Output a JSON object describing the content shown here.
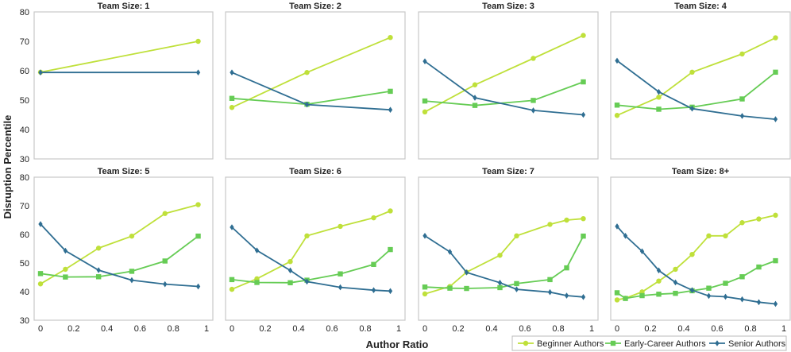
{
  "chart_data": {
    "type": "line",
    "xlabel": "Author Ratio",
    "ylabel": "Disruption Percentile",
    "ylim": [
      30,
      80
    ],
    "yticks": [
      "30",
      "40",
      "50",
      "60",
      "70",
      "80"
    ],
    "xlim": [
      0,
      1
    ],
    "xticks": [
      "0",
      "0.2",
      "0.4",
      "0.6",
      "0.8",
      "1"
    ],
    "grid": false,
    "legend_position": "bottom-right",
    "colors": {
      "beginner": "#bfe03a",
      "early": "#66cc55",
      "senior": "#2f6e92"
    },
    "markers": {
      "beginner": "circle",
      "early": "square",
      "senior": "diamond"
    },
    "legend": [
      "Beginner Authors",
      "Early-Career Authors",
      "Senior Authors"
    ],
    "panels": [
      {
        "title": "Team Size: 1",
        "series": [
          {
            "name": "Beginner Authors",
            "key": "beginner",
            "x": [
              0,
              0.95
            ],
            "y": [
              59.5,
              70
            ]
          },
          {
            "name": "Senior Authors",
            "key": "senior",
            "x": [
              0,
              0.95
            ],
            "y": [
              59.4,
              59.4
            ]
          }
        ]
      },
      {
        "title": "Team Size: 2",
        "series": [
          {
            "name": "Beginner Authors",
            "key": "beginner",
            "x": [
              0,
              0.45,
              0.95
            ],
            "y": [
              47.5,
              59.4,
              71.3
            ]
          },
          {
            "name": "Early-Career Authors",
            "key": "early",
            "x": [
              0,
              0.45,
              0.95
            ],
            "y": [
              50.6,
              48.6,
              53
            ]
          },
          {
            "name": "Senior Authors",
            "key": "senior",
            "x": [
              0,
              0.45,
              0.95
            ],
            "y": [
              59.4,
              48.5,
              46.7
            ]
          }
        ]
      },
      {
        "title": "Team Size: 3",
        "series": [
          {
            "name": "Beginner Authors",
            "key": "beginner",
            "x": [
              0,
              0.3,
              0.65,
              0.95
            ],
            "y": [
              46,
              55.2,
              64.2,
              72
            ]
          },
          {
            "name": "Early-Career Authors",
            "key": "early",
            "x": [
              0,
              0.3,
              0.65,
              0.95
            ],
            "y": [
              49.7,
              48.2,
              49.9,
              56.2
            ]
          },
          {
            "name": "Senior Authors",
            "key": "senior",
            "x": [
              0,
              0.3,
              0.65,
              0.95
            ],
            "y": [
              63.2,
              50.8,
              46.5,
              45
            ]
          }
        ]
      },
      {
        "title": "Team Size: 4",
        "series": [
          {
            "name": "Beginner Authors",
            "key": "beginner",
            "x": [
              0,
              0.25,
              0.45,
              0.75,
              0.95
            ],
            "y": [
              44.8,
              51,
              59.5,
              65.7,
              71.2
            ]
          },
          {
            "name": "Early-Career Authors",
            "key": "early",
            "x": [
              0,
              0.25,
              0.45,
              0.75,
              0.95
            ],
            "y": [
              48.3,
              46.9,
              47.6,
              50.4,
              59.5
            ]
          },
          {
            "name": "Senior Authors",
            "key": "senior",
            "x": [
              0,
              0.25,
              0.45,
              0.75,
              0.95
            ],
            "y": [
              63.4,
              52.8,
              47.1,
              44.6,
              43.5
            ]
          }
        ]
      },
      {
        "title": "Team Size: 5",
        "series": [
          {
            "name": "Beginner Authors",
            "key": "beginner",
            "x": [
              0,
              0.15,
              0.35,
              0.55,
              0.75,
              0.95
            ],
            "y": [
              42.7,
              47.8,
              55.2,
              59.4,
              67.3,
              70.4
            ]
          },
          {
            "name": "Early-Career Authors",
            "key": "early",
            "x": [
              0,
              0.15,
              0.35,
              0.55,
              0.75,
              0.95
            ],
            "y": [
              46.3,
              45.1,
              45.2,
              47.1,
              50.7,
              59.4
            ]
          },
          {
            "name": "Senior Authors",
            "key": "senior",
            "x": [
              0,
              0.15,
              0.35,
              0.55,
              0.75,
              0.95
            ],
            "y": [
              63.6,
              54.3,
              47.5,
              44,
              42.6,
              41.8
            ]
          }
        ]
      },
      {
        "title": "Team Size: 6",
        "series": [
          {
            "name": "Beginner Authors",
            "key": "beginner",
            "x": [
              0,
              0.15,
              0.35,
              0.45,
              0.65,
              0.85,
              0.95
            ],
            "y": [
              40.8,
              44.5,
              50.5,
              59.5,
              62.8,
              65.8,
              68.2
            ]
          },
          {
            "name": "Early-Career Authors",
            "key": "early",
            "x": [
              0,
              0.15,
              0.35,
              0.45,
              0.65,
              0.85,
              0.95
            ],
            "y": [
              44.2,
              43.2,
              43.1,
              44,
              46.2,
              49.5,
              54.7
            ]
          },
          {
            "name": "Senior Authors",
            "key": "senior",
            "x": [
              0,
              0.15,
              0.35,
              0.45,
              0.65,
              0.85,
              0.95
            ],
            "y": [
              62.5,
              54.4,
              47.4,
              43.5,
              41.5,
              40.5,
              40.2
            ]
          }
        ]
      },
      {
        "title": "Team Size: 7",
        "series": [
          {
            "name": "Beginner Authors",
            "key": "beginner",
            "x": [
              0,
              0.15,
              0.25,
              0.45,
              0.55,
              0.75,
              0.85,
              0.95
            ],
            "y": [
              39.2,
              41.8,
              46.8,
              52.7,
              59.5,
              63.5,
              65,
              65.5
            ]
          },
          {
            "name": "Early-Career Authors",
            "key": "early",
            "x": [
              0,
              0.15,
              0.25,
              0.45,
              0.55,
              0.75,
              0.85,
              0.95
            ],
            "y": [
              41.6,
              41.2,
              41.1,
              41.4,
              42.8,
              44.2,
              48.3,
              59.4
            ]
          },
          {
            "name": "Senior Authors",
            "key": "senior",
            "x": [
              0,
              0.15,
              0.25,
              0.45,
              0.55,
              0.75,
              0.85,
              0.95
            ],
            "y": [
              59.5,
              53.9,
              46.7,
              43.1,
              40.8,
              39.8,
              38.6,
              38.1
            ]
          }
        ]
      },
      {
        "title": "Team Size: 8+",
        "series": [
          {
            "name": "Beginner Authors",
            "key": "beginner",
            "x": [
              0,
              0.05,
              0.15,
              0.25,
              0.35,
              0.45,
              0.55,
              0.65,
              0.75,
              0.85,
              0.95
            ],
            "y": [
              37.1,
              37.7,
              39.9,
              43.7,
              47.8,
              53,
              59.5,
              59.5,
              64.1,
              65.4,
              66.7
            ]
          },
          {
            "name": "Early-Career Authors",
            "key": "early",
            "x": [
              0,
              0.05,
              0.15,
              0.25,
              0.35,
              0.45,
              0.55,
              0.65,
              0.75,
              0.85,
              0.95
            ],
            "y": [
              39.6,
              37.6,
              38.6,
              39.1,
              39.4,
              40.3,
              41.2,
              42.9,
              45.2,
              48.6,
              50.8
            ]
          },
          {
            "name": "Senior Authors",
            "key": "senior",
            "x": [
              0,
              0.05,
              0.15,
              0.25,
              0.35,
              0.45,
              0.55,
              0.65,
              0.75,
              0.85,
              0.95
            ],
            "y": [
              62.8,
              59.5,
              54.1,
              47.4,
              43.2,
              40.5,
              38.5,
              38.2,
              37.3,
              36.3,
              35.7
            ]
          }
        ]
      }
    ]
  }
}
